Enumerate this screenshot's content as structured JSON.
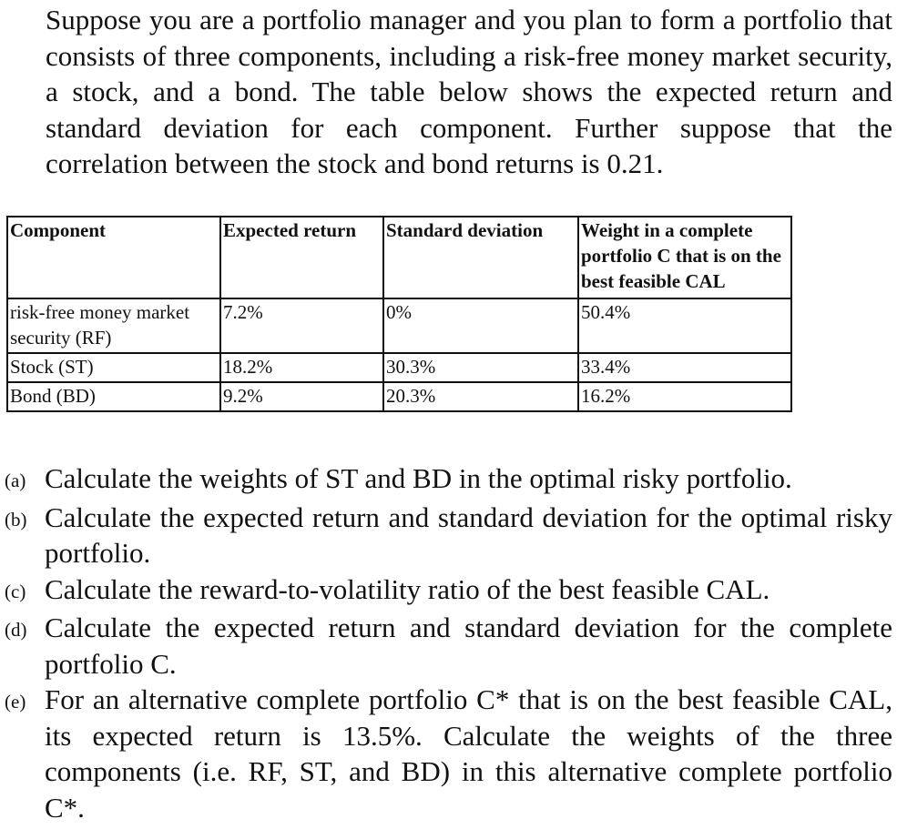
{
  "intro": "Suppose you are a portfolio manager and you plan to form a portfolio that consists of three components, including a risk-free money market security, a stock, and a bond. The table below shows the expected return and standard deviation for each component. Further suppose that the correlation between the stock and bond returns is 0.21.",
  "table": {
    "headers": [
      "Component",
      "Expected return",
      "Standard deviation",
      "Weight in a complete portfolio C that is on the best feasible CAL"
    ],
    "rows": [
      [
        "risk-free money market security (RF)",
        "7.2%",
        "0%",
        "50.4%"
      ],
      [
        "Stock (ST)",
        "18.2%",
        "30.3%",
        "33.4%"
      ],
      [
        "Bond (BD)",
        "9.2%",
        "20.3%",
        "16.2%"
      ]
    ]
  },
  "questions": [
    {
      "label": "(a)",
      "text": "Calculate the weights of ST and BD in the optimal risky portfolio."
    },
    {
      "label": "(b)",
      "text": "Calculate the expected return and standard deviation for the optimal risky portfolio."
    },
    {
      "label": "(c)",
      "text": "Calculate the reward-to-volatility ratio of the best feasible CAL."
    },
    {
      "label": "(d)",
      "text": "Calculate the expected return and standard deviation for the complete portfolio C."
    },
    {
      "label": "(e)",
      "text": "For an alternative complete portfolio C* that is on the best feasible CAL, its expected return is 13.5%. Calculate the weights of the three components (i.e. RF, ST, and BD) in this alternative complete portfolio C*."
    }
  ]
}
